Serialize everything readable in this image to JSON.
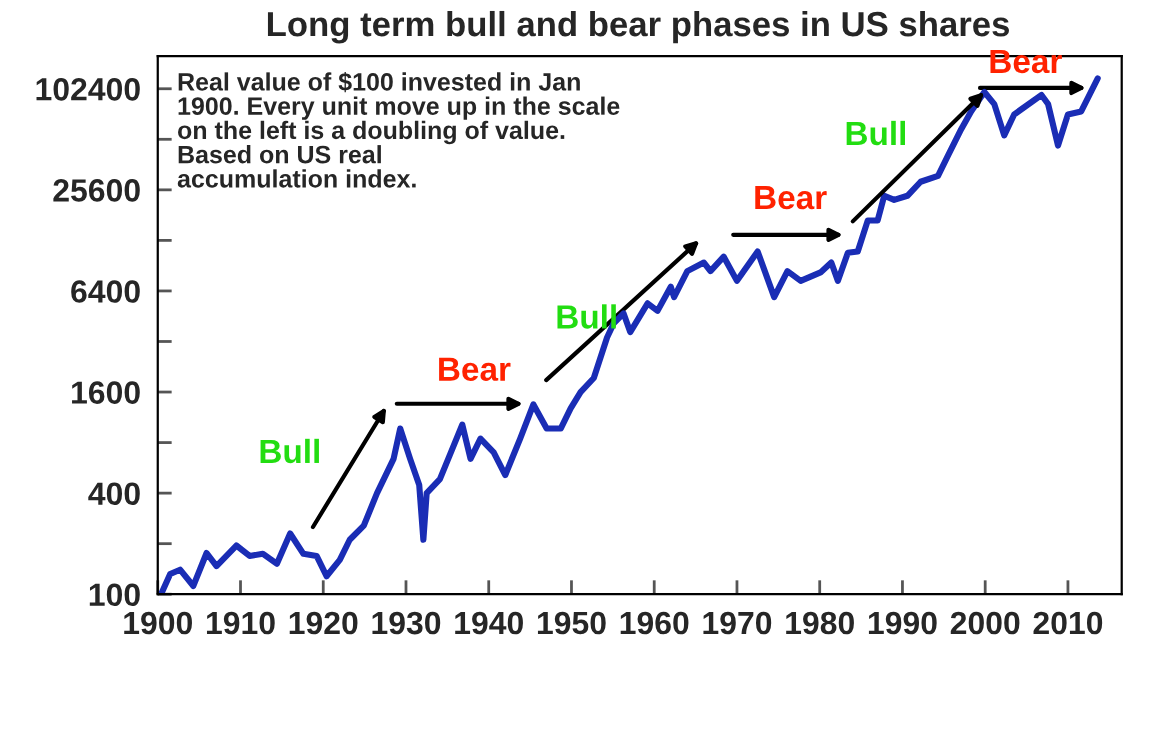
{
  "chart_data": {
    "type": "line",
    "title": "Long term bull and bear phases in US shares",
    "x": [
      1900.4,
      1901.5,
      1902.7,
      1904.3,
      1905.9,
      1907.1,
      1908.3,
      1909.5,
      1911.1,
      1912.7,
      1914.4,
      1916,
      1917.6,
      1919.2,
      1920.4,
      1922,
      1923.2,
      1924.9,
      1926.5,
      1928.5,
      1929.3,
      1930.5,
      1931.6,
      1932.1,
      1932.5,
      1934.1,
      1935.8,
      1936.8,
      1937.8,
      1939,
      1940.6,
      1942,
      1943.8,
      1945.4,
      1947,
      1948.7,
      1949.9,
      1951.1,
      1952.7,
      1954.3,
      1955.1,
      1956.3,
      1957.1,
      1959.2,
      1960.4,
      1962,
      1962.4,
      1964,
      1966,
      1966.8,
      1968.4,
      1970,
      1972.5,
      1974.5,
      1976.1,
      1977.7,
      1980.1,
      1981.4,
      1982.2,
      1983.4,
      1984.6,
      1985.8,
      1987,
      1987.8,
      1989,
      1990.6,
      1992.2,
      1994.3,
      1995.5,
      1997.1,
      1998.3,
      1999.9,
      2001.1,
      2002.3,
      2003.5,
      2006.8,
      2007.6,
      2008.8,
      2010,
      2011.6,
      2013.6
    ],
    "series": [
      {
        "color": "#1a2db5",
        "values": [
          100,
          132,
          140,
          112,
          176,
          147,
          169,
          195,
          169,
          174,
          152,
          230,
          174,
          169,
          128,
          160,
          211,
          256,
          400,
          640,
          970,
          640,
          447,
          211,
          400,
          485,
          776,
          1024,
          640,
          845,
          700,
          512,
          845,
          1350,
          970,
          970,
          1280,
          1600,
          1940,
          3380,
          4100,
          4700,
          3640,
          5400,
          4870,
          6780,
          5880,
          8400,
          9450,
          8400,
          10240,
          7350,
          11000,
          5880,
          8400,
          7350,
          8250,
          9450,
          7350,
          10800,
          11000,
          16800,
          16800,
          23600,
          22300,
          23600,
          28600,
          31000,
          40900,
          58800,
          75000,
          98000,
          83000,
          54000,
          72000,
          94000,
          83000,
          47000,
          72000,
          75000,
          118000
        ]
      }
    ],
    "annotations": [
      "Real value of $100 invested in Jan\n1900. Every unit move up in the scale\non the left is a doubling of value.\nBased on US real\naccumulation index.",
      "Bull",
      "Bear",
      "Bull",
      "Bear",
      {
        "text": "Bull",
        "x": 1999.9,
        "y": 98000
      },
      "Bear"
    ],
    "log": "y",
    "xlim": [
      1900,
      2016.5
    ],
    "ylim": [
      100,
      160000
    ],
    "xticks": [
      1900,
      1910,
      1920,
      1930,
      1940,
      1950,
      1960,
      1970,
      1980,
      1990,
      2000,
      2010
    ],
    "yticks": [
      100,
      {
        "value": 200,
        "label": null
      },
      400,
      {
        "value": 800,
        "label": null
      },
      1600,
      {
        "value": 3200,
        "label": null
      },
      6400,
      {
        "value": 12800,
        "label": null
      },
      25600,
      {
        "value": 51200,
        "label": null
      },
      102400
    ],
    "grid": false
  }
}
